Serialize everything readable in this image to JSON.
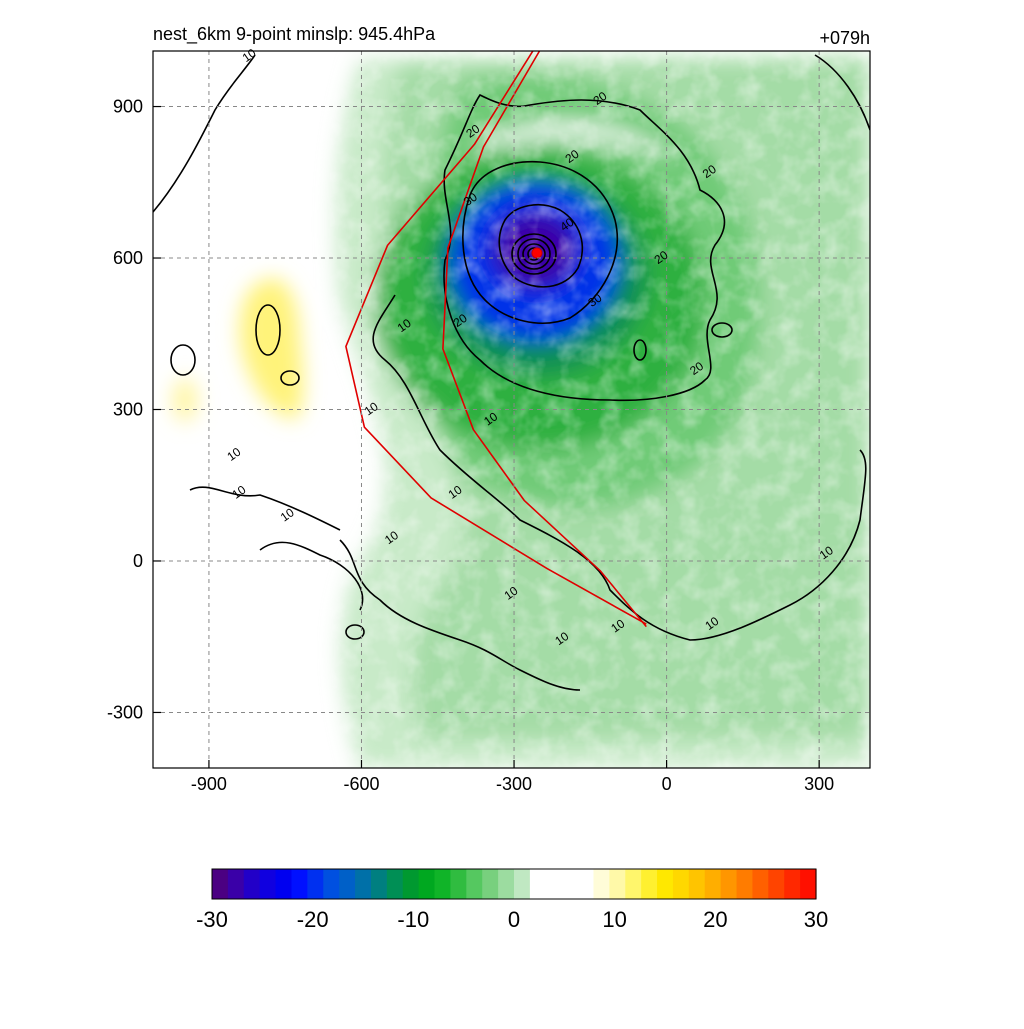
{
  "chart_data": {
    "type": "heatmap",
    "title": "nest_6km  9-point minslp: 945.4hPa",
    "time_label": "+079h",
    "xlim": [
      -1010,
      400
    ],
    "ylim": [
      -410,
      1010
    ],
    "x_ticks": [
      -900,
      -600,
      -300,
      0,
      300
    ],
    "y_ticks": [
      -300,
      0,
      300,
      600,
      900
    ],
    "grid": true,
    "center": [
      -255,
      610
    ],
    "track": [
      [
        -40,
        -130
      ],
      [
        -130,
        -20
      ],
      [
        -280,
        120
      ],
      [
        -380,
        260
      ],
      [
        -440,
        420
      ],
      [
        -430,
        620
      ],
      [
        -360,
        820
      ],
      [
        -250,
        1010
      ]
    ],
    "contour_labels": [
      {
        "text": "10",
        "x": -820,
        "y": 1000
      },
      {
        "text": "20",
        "x": -380,
        "y": 850
      },
      {
        "text": "20",
        "x": -130,
        "y": 915
      },
      {
        "text": "20",
        "x": -185,
        "y": 800
      },
      {
        "text": "20",
        "x": 85,
        "y": 770
      },
      {
        "text": "30",
        "x": -385,
        "y": 715
      },
      {
        "text": "40",
        "x": -195,
        "y": 665
      },
      {
        "text": "20",
        "x": -10,
        "y": 600
      },
      {
        "text": "30",
        "x": -140,
        "y": 515
      },
      {
        "text": "20",
        "x": -405,
        "y": 475
      },
      {
        "text": "10",
        "x": -515,
        "y": 465
      },
      {
        "text": "20",
        "x": 60,
        "y": 380
      },
      {
        "text": "10",
        "x": -580,
        "y": 300
      },
      {
        "text": "10",
        "x": -345,
        "y": 280
      },
      {
        "text": "10",
        "x": -850,
        "y": 210
      },
      {
        "text": "10",
        "x": -840,
        "y": 135
      },
      {
        "text": "10",
        "x": -415,
        "y": 135
      },
      {
        "text": "10",
        "x": -745,
        "y": 90
      },
      {
        "text": "10",
        "x": -540,
        "y": 45
      },
      {
        "text": "10",
        "x": -305,
        "y": -65
      },
      {
        "text": "10",
        "x": -205,
        "y": -155
      },
      {
        "text": "10",
        "x": -95,
        "y": -130
      },
      {
        "text": "10",
        "x": 90,
        "y": -125
      },
      {
        "text": "10",
        "x": 315,
        "y": 15
      }
    ],
    "colorbar": {
      "min": -30,
      "max": 30,
      "ticks": [
        -30,
        -20,
        -10,
        0,
        10,
        20,
        30
      ],
      "colors": [
        "#4b0082",
        "#3a00a8",
        "#2200c8",
        "#1000e0",
        "#0000f0",
        "#0010ff",
        "#0030f0",
        "#0050e0",
        "#0060c8",
        "#0070a8",
        "#007f80",
        "#008f55",
        "#009930",
        "#00a820",
        "#10b428",
        "#30bc40",
        "#55c860",
        "#78d07e",
        "#9cdca0",
        "#c0e8c2",
        "#ffffff",
        "#ffffff",
        "#ffffff",
        "#ffffff",
        "#fffcd8",
        "#fff9a8",
        "#fff66c",
        "#fff030",
        "#ffe800",
        "#ffd800",
        "#ffc400",
        "#ffae00",
        "#ff9600",
        "#ff7c00",
        "#ff6000",
        "#ff4400",
        "#ff2800",
        "#ff1000"
      ]
    }
  }
}
